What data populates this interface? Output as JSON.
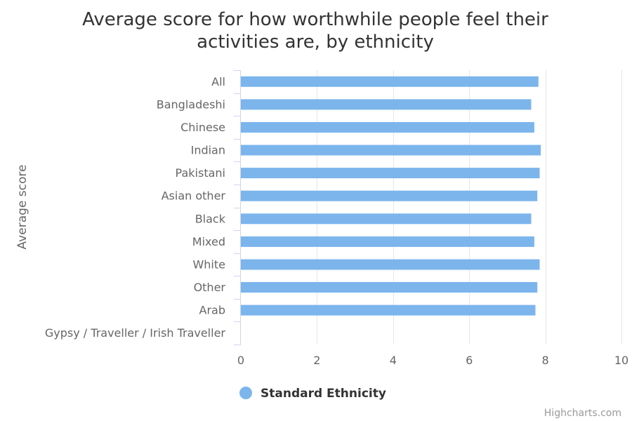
{
  "colors": {
    "series": "#7cb5ec",
    "grid": "#e6e6e6",
    "axis_line": "#ccd6eb",
    "title": "#333333",
    "label": "#666666",
    "credits": "#999999"
  },
  "credits": "Highcharts.com",
  "chart_data": {
    "type": "bar",
    "orientation": "horizontal",
    "title_lines": [
      "Average score for how worthwhile people feel their",
      "activities are, by ethnicity"
    ],
    "ylabel": "Average score",
    "xlabel": "",
    "categories": [
      "All",
      "Bangladeshi",
      "Chinese",
      "Indian",
      "Pakistani",
      "Asian other",
      "Black",
      "Mixed",
      "White",
      "Other",
      "Arab",
      "Gypsy / Traveller / Irish Traveller"
    ],
    "series": [
      {
        "name": "Standard Ethnicity",
        "values": [
          7.82,
          7.63,
          7.71,
          7.88,
          7.85,
          7.79,
          7.63,
          7.71,
          7.85,
          7.79,
          7.74,
          null
        ]
      }
    ],
    "value_axis": {
      "min": 0,
      "max": 10,
      "ticks": [
        0,
        2,
        4,
        6,
        8,
        10
      ]
    },
    "grid": true,
    "legend_position": "bottom-center"
  }
}
